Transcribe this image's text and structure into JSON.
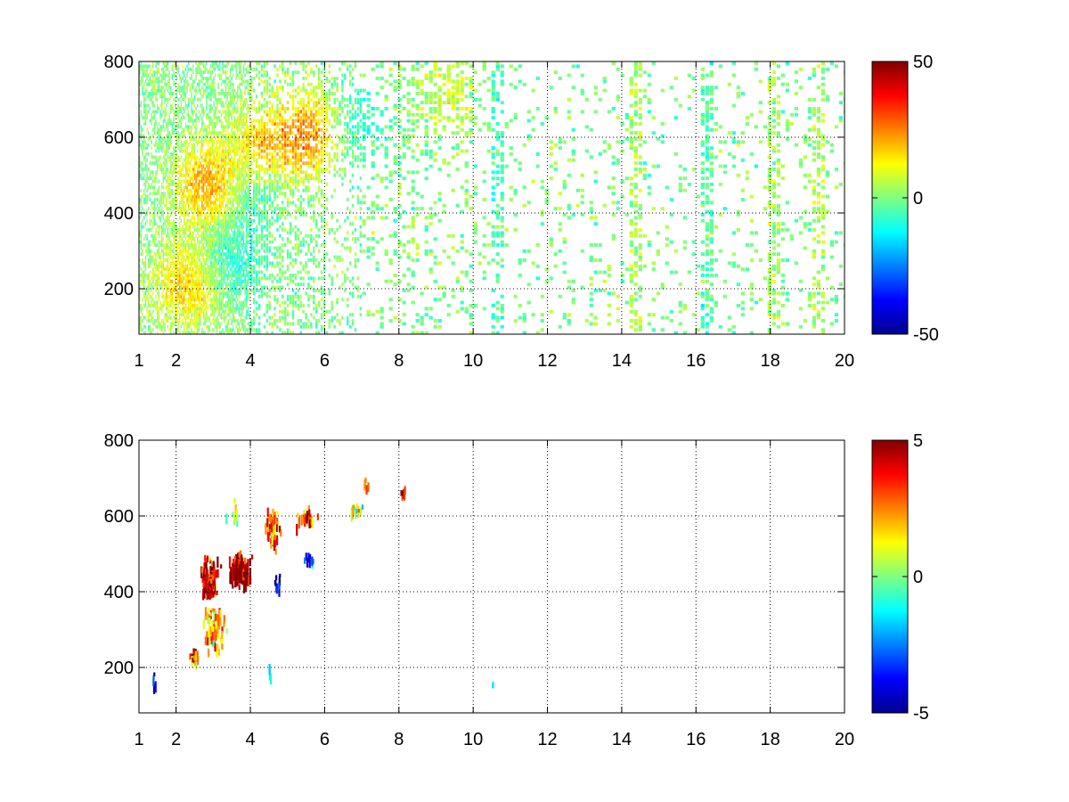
{
  "chart_data": [
    {
      "type": "heatmap",
      "xlim": [
        1,
        20
      ],
      "ylim": [
        80,
        800
      ],
      "x_ticks": [
        1,
        2,
        4,
        6,
        8,
        10,
        12,
        14,
        16,
        18,
        20
      ],
      "x_tick_labels": [
        "1",
        "2",
        "4",
        "6",
        "8",
        "10",
        "12",
        "14",
        "16",
        "18",
        "20"
      ],
      "y_ticks": [
        200,
        400,
        600,
        800
      ],
      "y_tick_labels": [
        "200",
        "400",
        "600",
        "800"
      ],
      "grid": true,
      "colormap": "jet",
      "clim": [
        -50,
        50
      ],
      "colorbar_ticks": [
        -50,
        0,
        50
      ],
      "colorbar_tick_labels": [
        "-50",
        "0",
        "50"
      ],
      "hotspots": [
        {
          "x": 2.9,
          "y": 470,
          "value": 25
        },
        {
          "x": 2.3,
          "y": 210,
          "value": 18
        },
        {
          "x": 4.3,
          "y": 560,
          "value": 22
        },
        {
          "x": 5.7,
          "y": 610,
          "value": 24
        },
        {
          "x": 6.7,
          "y": 630,
          "value": -12
        },
        {
          "x": 3.9,
          "y": 480,
          "value": -15
        },
        {
          "x": 3.4,
          "y": 270,
          "value": -10
        },
        {
          "x": 9.2,
          "y": 720,
          "value": 8
        }
      ],
      "columns": [
        {
          "x": 10.6,
          "value": -8
        },
        {
          "x": 14.3,
          "value": 6
        },
        {
          "x": 16.3,
          "value": -6
        },
        {
          "x": 18.0,
          "value": 4
        },
        {
          "x": 19.2,
          "value": 7
        }
      ]
    },
    {
      "type": "heatmap",
      "xlim": [
        1,
        20
      ],
      "ylim": [
        80,
        800
      ],
      "x_ticks": [
        1,
        2,
        4,
        6,
        8,
        10,
        12,
        14,
        16,
        18,
        20
      ],
      "x_tick_labels": [
        "1",
        "2",
        "4",
        "6",
        "8",
        "10",
        "12",
        "14",
        "16",
        "18",
        "20"
      ],
      "y_ticks": [
        200,
        400,
        600,
        800
      ],
      "y_tick_labels": [
        "200",
        "400",
        "600",
        "800"
      ],
      "grid": true,
      "colormap": "jet",
      "clim": [
        -5,
        5
      ],
      "colorbar_ticks": [
        -5,
        0,
        5
      ],
      "colorbar_tick_labels": [
        "-5",
        "0",
        "5"
      ],
      "clusters": [
        {
          "x": 3.7,
          "y": 450,
          "value": 5,
          "sx": 0.3,
          "sy": 45,
          "n": 170
        },
        {
          "x": 2.9,
          "y": 430,
          "value": 4,
          "sx": 0.25,
          "sy": 55,
          "n": 110
        },
        {
          "x": 3.0,
          "y": 300,
          "value": 2,
          "sx": 0.3,
          "sy": 70,
          "n": 80
        },
        {
          "x": 2.5,
          "y": 220,
          "value": 3,
          "sx": 0.15,
          "sy": 20,
          "n": 20
        },
        {
          "x": 4.6,
          "y": 560,
          "value": 3,
          "sx": 0.2,
          "sy": 60,
          "n": 60
        },
        {
          "x": 5.5,
          "y": 590,
          "value": 3,
          "sx": 0.25,
          "sy": 25,
          "n": 30
        },
        {
          "x": 5.6,
          "y": 480,
          "value": -3,
          "sx": 0.15,
          "sy": 15,
          "n": 10
        },
        {
          "x": 6.8,
          "y": 610,
          "value": 1,
          "sx": 0.25,
          "sy": 20,
          "n": 18
        },
        {
          "x": 7.1,
          "y": 680,
          "value": 4,
          "sx": 0.05,
          "sy": 15,
          "n": 5
        },
        {
          "x": 8.1,
          "y": 660,
          "value": 4,
          "sx": 0.1,
          "sy": 15,
          "n": 6
        },
        {
          "x": 4.7,
          "y": 420,
          "value": -4,
          "sx": 0.1,
          "sy": 25,
          "n": 10
        },
        {
          "x": 3.5,
          "y": 600,
          "value": 1,
          "sx": 0.2,
          "sy": 40,
          "n": 12
        },
        {
          "x": 1.4,
          "y": 160,
          "value": -4,
          "sx": 0.05,
          "sy": 30,
          "n": 5
        },
        {
          "x": 4.5,
          "y": 180,
          "value": -1,
          "sx": 0.05,
          "sy": 15,
          "n": 4
        },
        {
          "x": 10.5,
          "y": 145,
          "value": 0,
          "sx": 0.02,
          "sy": 4,
          "n": 2
        }
      ]
    }
  ]
}
